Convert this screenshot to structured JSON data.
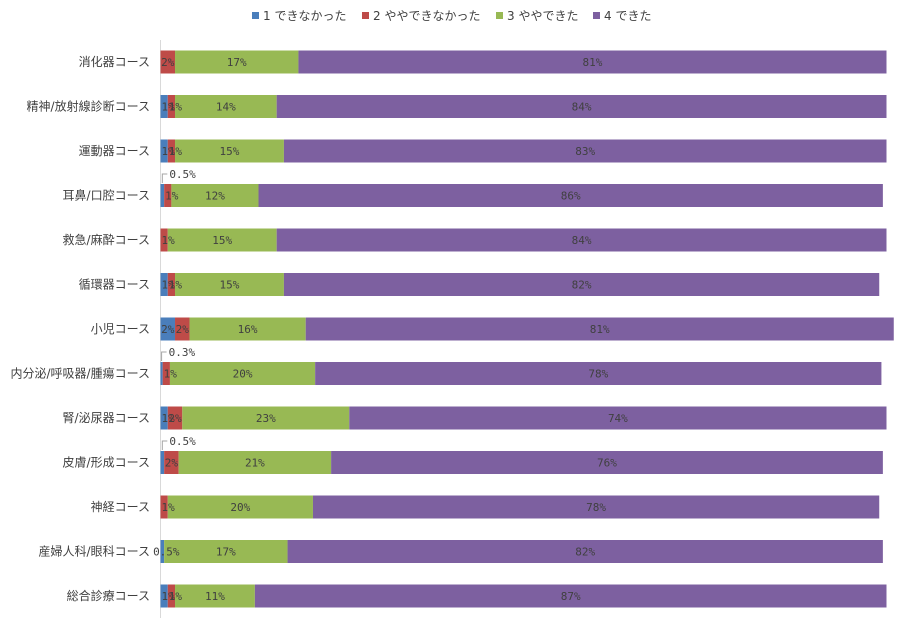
{
  "chart_data": {
    "type": "bar",
    "orientation": "horizontal",
    "stacked": "percent",
    "legend_position": "top",
    "grid": false,
    "xlim": [
      0,
      100
    ],
    "categories": [
      "消化器コース",
      "精神/放射線診断コース",
      "運動器コース",
      "耳鼻/口腔コース",
      "救急/麻酔コース",
      "循環器コース",
      "小児コース",
      "内分泌/呼吸器/腫瘍コース",
      "腎/泌尿器コース",
      "皮膚/形成コース",
      "神経コース",
      "産婦人科/眼科コース",
      "総合診療コース"
    ],
    "series": [
      {
        "name": "1 できなかった",
        "color": "#4a7ebb",
        "values": [
          0,
          1,
          1,
          0.5,
          0,
          1,
          2,
          0.3,
          1,
          0.5,
          0,
          0.5,
          1
        ],
        "labels": [
          "",
          "1%",
          "1%",
          "0.5%",
          "",
          "1%",
          "2%",
          "0.3%",
          "1%",
          "0.5%",
          "",
          "0.5%",
          "1%"
        ],
        "callout": [
          false,
          false,
          false,
          true,
          false,
          false,
          false,
          true,
          false,
          true,
          false,
          false,
          false
        ]
      },
      {
        "name": "2 ややできなかった",
        "color": "#be4b48",
        "values": [
          2,
          1,
          1,
          1,
          1,
          1,
          2,
          1,
          2,
          2,
          1,
          0,
          1
        ],
        "labels": [
          "2%",
          "1%",
          "1%",
          "1%",
          "1%",
          "1%",
          "2%",
          "1%",
          "2%",
          "2%",
          "1%",
          "",
          "1%"
        ]
      },
      {
        "name": "3 ややできた",
        "color": "#98b954",
        "values": [
          17,
          14,
          15,
          12,
          15,
          15,
          16,
          20,
          23,
          21,
          20,
          17,
          11
        ],
        "labels": [
          "17%",
          "14%",
          "15%",
          "12%",
          "15%",
          "15%",
          "16%",
          "20%",
          "23%",
          "21%",
          "20%",
          "17%",
          "11%"
        ]
      },
      {
        "name": "4 できた",
        "color": "#7d60a0",
        "values": [
          81,
          84,
          83,
          86,
          84,
          82,
          81,
          78,
          74,
          76,
          78,
          82,
          87
        ],
        "labels": [
          "81%",
          "84%",
          "83%",
          "86%",
          "84%",
          "82%",
          "81%",
          "78%",
          "74%",
          "76%",
          "78%",
          "82%",
          "87%"
        ]
      }
    ]
  }
}
